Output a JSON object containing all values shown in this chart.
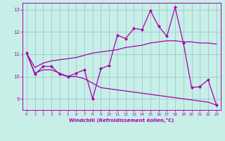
{
  "xlabel": "Windchill (Refroidissement éolien,°C)",
  "xlim": [
    -0.5,
    23.5
  ],
  "ylim": [
    8.5,
    13.3
  ],
  "xticks": [
    0,
    1,
    2,
    3,
    4,
    5,
    6,
    7,
    8,
    9,
    10,
    11,
    12,
    13,
    14,
    15,
    16,
    17,
    18,
    19,
    20,
    21,
    22,
    23
  ],
  "yticks": [
    9,
    10,
    11,
    12,
    13
  ],
  "background_color": "#c8eee8",
  "line_color": "#aa00aa",
  "grid_color": "#99cccc",
  "line1_x": [
    0,
    1,
    2,
    3,
    4,
    5,
    6,
    7,
    8,
    9,
    10,
    11,
    12,
    13,
    14,
    15,
    16,
    17,
    18,
    19,
    20,
    21,
    22,
    23
  ],
  "line1_y": [
    11.05,
    10.1,
    10.45,
    10.45,
    10.1,
    10.0,
    10.15,
    10.3,
    9.0,
    10.35,
    10.5,
    11.85,
    11.7,
    12.15,
    12.1,
    12.95,
    12.25,
    11.8,
    13.1,
    11.5,
    9.5,
    9.55,
    9.85,
    8.72
  ],
  "line2_x": [
    0,
    1,
    2,
    3,
    4,
    5,
    6,
    7,
    8,
    9,
    10,
    11,
    12,
    13,
    14,
    15,
    16,
    17,
    18,
    19,
    20,
    21,
    22,
    23
  ],
  "line2_y": [
    11.05,
    10.4,
    10.6,
    10.7,
    10.75,
    10.8,
    10.85,
    10.95,
    11.05,
    11.1,
    11.15,
    11.2,
    11.3,
    11.35,
    11.4,
    11.5,
    11.55,
    11.6,
    11.6,
    11.55,
    11.55,
    11.5,
    11.5,
    11.45
  ],
  "line3_x": [
    0,
    1,
    2,
    3,
    4,
    5,
    6,
    7,
    8,
    9,
    10,
    11,
    12,
    13,
    14,
    15,
    16,
    17,
    18,
    19,
    20,
    21,
    22,
    23
  ],
  "line3_y": [
    11.05,
    10.15,
    10.3,
    10.3,
    10.15,
    10.0,
    10.0,
    9.9,
    9.7,
    9.5,
    9.45,
    9.4,
    9.35,
    9.3,
    9.25,
    9.2,
    9.15,
    9.1,
    9.05,
    9.0,
    8.95,
    8.9,
    8.85,
    8.72
  ]
}
